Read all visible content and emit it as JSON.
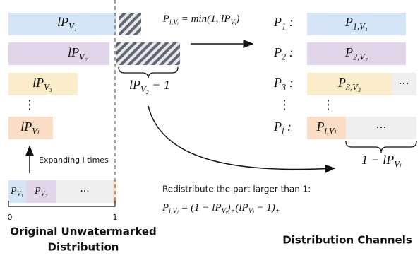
{
  "formula_top": [
    {
      "t": "P",
      "sub": "i,Vᵢ"
    },
    {
      "t": " = min(1, lP",
      "sub": "Vᵢ"
    },
    {
      "t": ")"
    }
  ],
  "left_bars": [
    [
      {
        "t": "lP",
        "sub": "V₁"
      }
    ],
    [
      {
        "t": "lP",
        "sub": "V₂"
      }
    ],
    [
      {
        "t": "lP",
        "sub": "V₃"
      }
    ],
    [
      {
        "t": "lP",
        "sub": "Vₗ"
      }
    ]
  ],
  "left_dots": "⋮",
  "overflow_label": [
    {
      "t": "lP",
      "sub": "V₂"
    },
    {
      "t": " − 1"
    }
  ],
  "expand_label": "Expanding l times",
  "bottom_bar": {
    "labels": [
      [
        {
          "t": "P",
          "sub": "V₁"
        }
      ],
      [
        {
          "t": "P",
          "sub": "V₂"
        }
      ]
    ],
    "ellipsis": "···",
    "ticks": [
      "0",
      "1"
    ]
  },
  "left_title": [
    "Original Unwatermarked",
    "Distribution"
  ],
  "channels": [
    {
      "name": [
        {
          "t": "P",
          "sub": "1"
        },
        {
          "t": " :"
        }
      ],
      "bar": [
        {
          "t": "P",
          "sub": "1,V₁"
        }
      ]
    },
    {
      "name": [
        {
          "t": "P",
          "sub": "2"
        },
        {
          "t": " :"
        }
      ],
      "bar": [
        {
          "t": "P",
          "sub": "2,V₂"
        }
      ]
    },
    {
      "name": [
        {
          "t": "P",
          "sub": "3"
        },
        {
          "t": " :"
        }
      ],
      "bar": [
        {
          "t": "P",
          "sub": "3,V₃"
        }
      ],
      "rest": "···"
    },
    {
      "name": [
        {
          "t": "P",
          "sub": "l"
        },
        {
          "t": " :"
        }
      ],
      "bar": [
        {
          "t": "P",
          "sub": "l,Vₗ"
        }
      ],
      "rest": "···"
    }
  ],
  "right_dots": "⋮",
  "remainder_label": [
    {
      "t": "1 − lP",
      "sub": "Vₗ"
    }
  ],
  "redistribute_text": "Redistribute the part larger than 1:",
  "formula_bottom": [
    {
      "t": "P",
      "sub": "i,Vⱼ"
    },
    {
      "t": " = (1 − lP",
      "sub": "Vᵢ"
    },
    {
      "t": ")",
      "sub": "+"
    },
    {
      "t": "(lP",
      "sub": "Vⱼ"
    },
    {
      "t": " − 1)",
      "sub": "+"
    }
  ],
  "right_title": "Distribution Channels"
}
